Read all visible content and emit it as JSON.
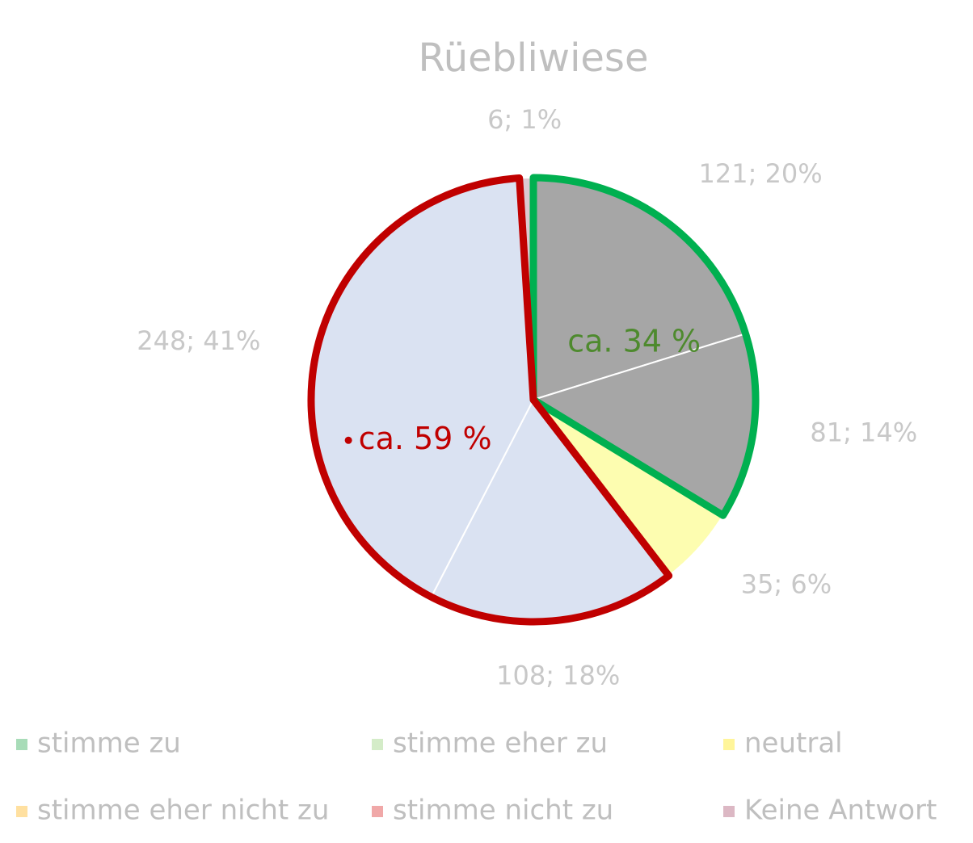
{
  "chart_data": {
    "type": "pie",
    "title": "Rüebliwiese",
    "categories": [
      "stimme zu",
      "stimme eher zu",
      "neutral",
      "stimme eher nicht zu",
      "stimme nicht zu",
      "Keine Antwort"
    ],
    "values": [
      121,
      81,
      35,
      108,
      248,
      6
    ],
    "value_labels": [
      "121; 20%",
      "81; 14%",
      "35; 6%",
      "108; 18%",
      "248; 41%",
      "6; 1%"
    ],
    "colors": [
      "#a6a6a6",
      "#a6a6a6",
      "#fdfdb0",
      "#dae2f2",
      "#dae2f2",
      "#dcc8d0"
    ],
    "legend_colors": [
      "#a8dcb8",
      "#d4ecc8",
      "#fff59a",
      "#ffe0a0",
      "#f0a8a8",
      "#dcb8c4"
    ],
    "annotations": [
      {
        "text": "ca. 34 %",
        "color": "#4e8a2e",
        "outline": "#00b050"
      },
      {
        "text": "ca. 59 %",
        "color": "#c00000",
        "outline": "#c00000"
      }
    ]
  }
}
